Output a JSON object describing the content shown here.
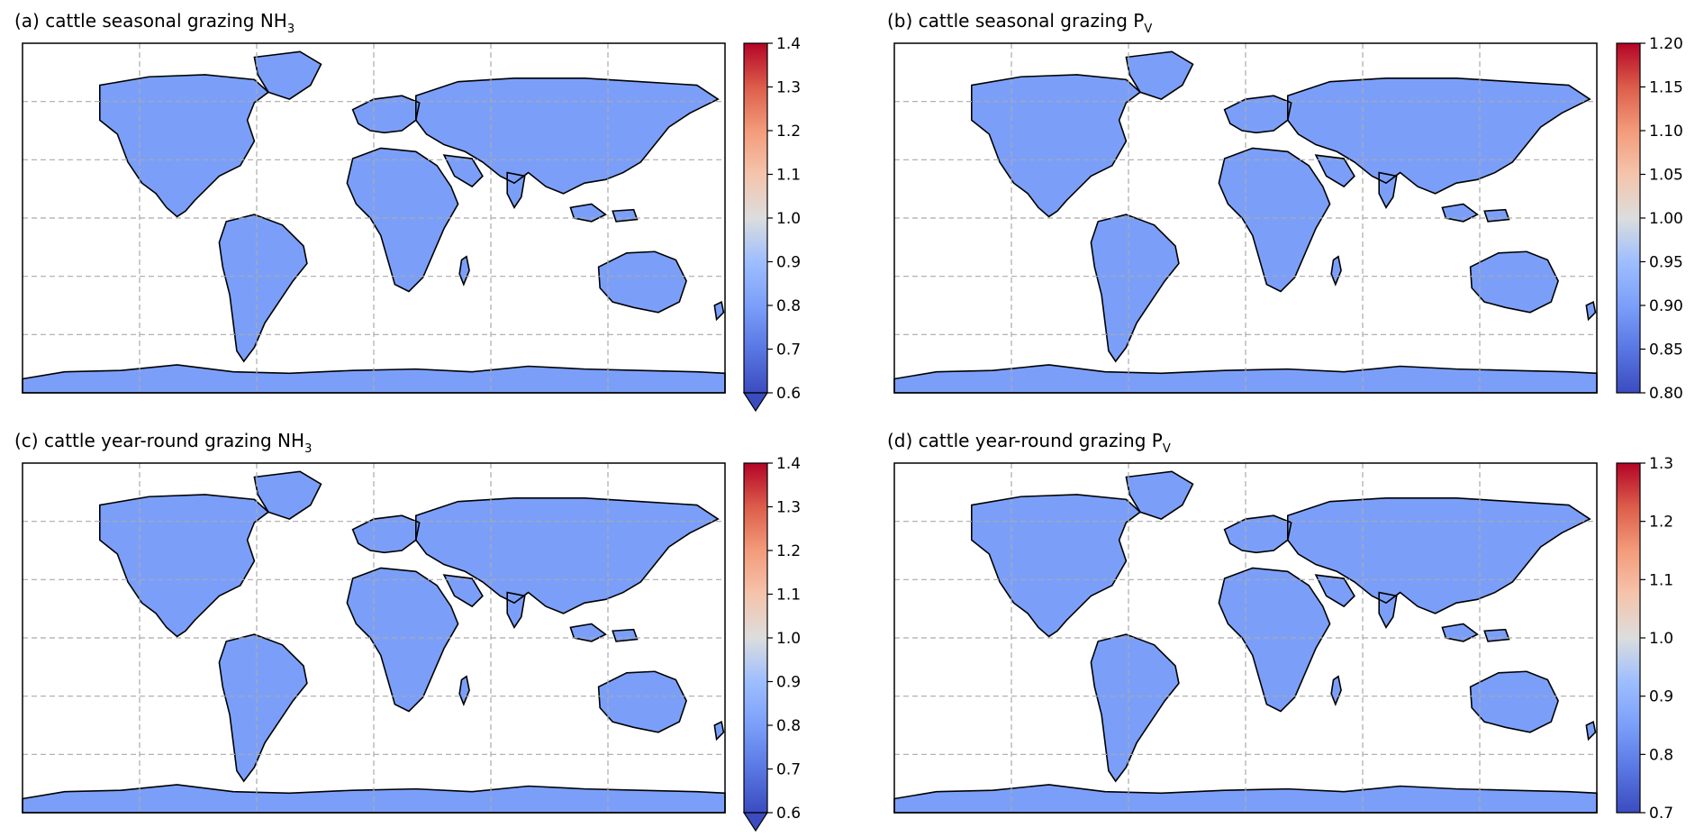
{
  "panels": [
    {
      "id": "a",
      "title_prefix": "(a) cattle seasonal grazing NH",
      "title_sub": "3",
      "colorbar": {
        "ticks": [
          "1.4",
          "1.3",
          "1.2",
          "1.1",
          "1.0",
          "0.9",
          "0.8",
          "0.7",
          "0.6"
        ],
        "min": 0.6,
        "max": 1.4,
        "extend_min": true
      }
    },
    {
      "id": "b",
      "title_prefix": "(b) cattle seasonal grazing P",
      "title_sub": "V",
      "colorbar": {
        "ticks": [
          "1.20",
          "1.15",
          "1.10",
          "1.05",
          "1.00",
          "0.95",
          "0.90",
          "0.85",
          "0.80"
        ],
        "min": 0.8,
        "max": 1.2,
        "extend_min": false
      }
    },
    {
      "id": "c",
      "title_prefix": "(c) cattle year-round grazing NH",
      "title_sub": "3",
      "colorbar": {
        "ticks": [
          "1.4",
          "1.3",
          "1.2",
          "1.1",
          "1.0",
          "0.9",
          "0.8",
          "0.7",
          "0.6"
        ],
        "min": 0.6,
        "max": 1.4,
        "extend_min": true
      }
    },
    {
      "id": "d",
      "title_prefix": "(d) cattle year-round grazing P",
      "title_sub": "V",
      "colorbar": {
        "ticks": [
          "1.3",
          "1.2",
          "1.1",
          "1.0",
          "0.9",
          "0.8",
          "0.7"
        ],
        "min": 0.7,
        "max": 1.3,
        "extend_min": false
      }
    }
  ],
  "colormap": {
    "name": "coolwarm",
    "low": "#3b4cc0",
    "mid": "#dddddd",
    "high": "#b40426"
  },
  "map": {
    "gridlines": "dashed",
    "grid_color": "#aaaaaa"
  }
}
